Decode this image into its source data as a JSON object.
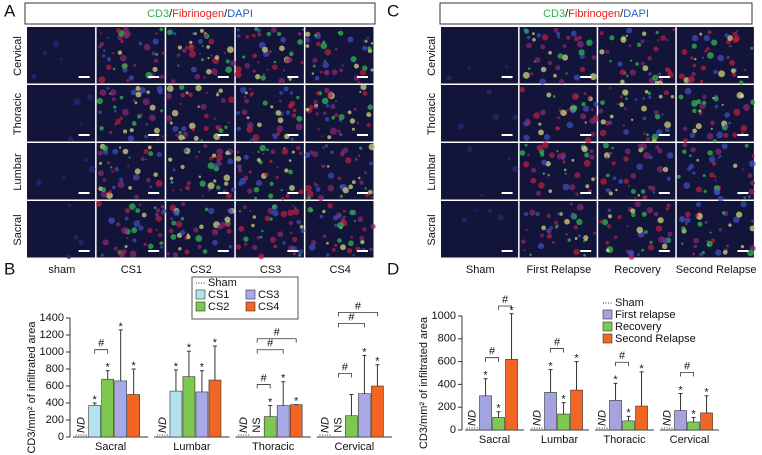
{
  "panel_a": {
    "letter": "A",
    "stain": [
      "CD3",
      "/",
      "Fibrinogen",
      "/",
      "DAPI"
    ],
    "rows": [
      "Cervical",
      "Thoracic",
      "Lumbar",
      "Sacral"
    ],
    "columns": [
      "sham",
      "CS1",
      "CS2",
      "CS3",
      "CS4"
    ]
  },
  "panel_c": {
    "letter": "C",
    "stain": [
      "CD3",
      "/",
      "Fibrinogen",
      "/",
      "DAPI"
    ],
    "rows": [
      "Cervical",
      "Thoracic",
      "Lumbar",
      "Sacral"
    ],
    "columns": [
      "Sham",
      "First Relapse",
      "Recovery",
      "Second Relapse"
    ]
  },
  "chart_data": [
    {
      "type": "bar",
      "letter": "B",
      "y_label": "CD3/mm² of infiltrated area",
      "categories": [
        "Sacral",
        "Lumbar",
        "Thoracic",
        "Cervical"
      ],
      "series": [
        {
          "name": "Sham",
          "color": "#ffffff",
          "values": [
            0,
            0,
            0,
            0
          ]
        },
        {
          "name": "CS1",
          "color": "#b3e3ea",
          "values": [
            370,
            540,
            0,
            0
          ],
          "errors": [
            30,
            250,
            0,
            0
          ]
        },
        {
          "name": "CS2",
          "color": "#7cc850",
          "values": [
            680,
            710,
            240,
            250
          ],
          "errors": [
            100,
            300,
            130,
            250
          ]
        },
        {
          "name": "CS3",
          "color": "#a9a9e6",
          "values": [
            660,
            530,
            370,
            510
          ],
          "errors": [
            600,
            250,
            280,
            450
          ]
        },
        {
          "name": "CS4",
          "color": "#f26522",
          "values": [
            500,
            670,
            380,
            600
          ],
          "errors": [
            300,
            400,
            0,
            250
          ]
        }
      ],
      "ylim": [
        0,
        1400
      ],
      "yticks": [
        0,
        200,
        400,
        600,
        800,
        1000,
        1200,
        1400
      ],
      "annotations": [
        {
          "text": "ND",
          "category": 0,
          "series": 0
        },
        {
          "text": "ND",
          "category": 1,
          "series": 0
        },
        {
          "text": "ND",
          "category": 2,
          "series": 0
        },
        {
          "text": "ND",
          "category": 3,
          "series": 0
        },
        {
          "text": "*",
          "category": 0,
          "series": 1
        },
        {
          "text": "*",
          "category": 1,
          "series": 1
        },
        {
          "text": "NS",
          "category": 2,
          "series": 1
        },
        {
          "text": "NS",
          "category": 3,
          "series": 1
        },
        {
          "text": "*",
          "category": 0,
          "series": 2
        },
        {
          "text": "*",
          "category": 1,
          "series": 2
        },
        {
          "text": "*",
          "category": 2,
          "series": 2
        },
        {
          "text": "*",
          "category": 0,
          "series": 3
        },
        {
          "text": "*",
          "category": 1,
          "series": 3
        },
        {
          "text": "*",
          "category": 2,
          "series": 3
        },
        {
          "text": "*",
          "category": 3,
          "series": 3
        },
        {
          "text": "*",
          "category": 0,
          "series": 4
        },
        {
          "text": "*",
          "category": 1,
          "series": 4
        },
        {
          "text": "*",
          "category": 2,
          "series": 4
        },
        {
          "text": "*",
          "category": 3,
          "series": 4
        }
      ],
      "brackets": [
        {
          "text": "#",
          "category": 0,
          "from": 1,
          "to": 2
        },
        {
          "text": "#",
          "category": 2,
          "from": 1,
          "to": 2
        },
        {
          "text": "#",
          "category": 2,
          "from": 1,
          "to": 3
        },
        {
          "text": "#",
          "category": 2,
          "from": 1,
          "to": 4
        },
        {
          "text": "#",
          "category": 3,
          "from": 1,
          "to": 2
        },
        {
          "text": "#",
          "category": 3,
          "from": 1,
          "to": 3
        },
        {
          "text": "#",
          "category": 3,
          "from": 1,
          "to": 4
        }
      ]
    },
    {
      "type": "bar",
      "letter": "D",
      "y_label": "CD3/mm² of infiltrated area",
      "categories": [
        "Sacral",
        "Lumbar",
        "Thoracic",
        "Cervical"
      ],
      "series": [
        {
          "name": "Sham",
          "color": "#ffffff",
          "values": [
            0,
            0,
            0,
            0
          ]
        },
        {
          "name": "First relapse",
          "color": "#a3a3e0",
          "values": [
            300,
            330,
            260,
            170
          ],
          "errors": [
            150,
            200,
            150,
            150
          ]
        },
        {
          "name": "Recovery",
          "color": "#7cc850",
          "values": [
            110,
            140,
            80,
            70
          ],
          "errors": [
            50,
            100,
            40,
            40
          ]
        },
        {
          "name": "Second Relapse",
          "color": "#f26522",
          "values": [
            620,
            350,
            210,
            150
          ],
          "errors": [
            400,
            250,
            300,
            150
          ]
        }
      ],
      "ylim": [
        0,
        1000
      ],
      "yticks": [
        0,
        200,
        400,
        600,
        800,
        1000
      ],
      "annotations": [
        {
          "text": "ND",
          "category": 0,
          "series": 0
        },
        {
          "text": "ND",
          "category": 1,
          "series": 0
        },
        {
          "text": "ND",
          "category": 2,
          "series": 0
        },
        {
          "text": "ND",
          "category": 3,
          "series": 0
        },
        {
          "text": "*",
          "category": 0,
          "series": 1
        },
        {
          "text": "*",
          "category": 1,
          "series": 1
        },
        {
          "text": "*",
          "category": 2,
          "series": 1
        },
        {
          "text": "*",
          "category": 3,
          "series": 1
        },
        {
          "text": "*",
          "category": 0,
          "series": 2
        },
        {
          "text": "*",
          "category": 1,
          "series": 2
        },
        {
          "text": "*",
          "category": 2,
          "series": 2
        },
        {
          "text": "*",
          "category": 3,
          "series": 2
        },
        {
          "text": "*",
          "category": 0,
          "series": 3
        },
        {
          "text": "*",
          "category": 1,
          "series": 3
        },
        {
          "text": "*",
          "category": 2,
          "series": 3
        },
        {
          "text": "*",
          "category": 3,
          "series": 3
        }
      ],
      "brackets": [
        {
          "text": "#",
          "category": 0,
          "from": 1,
          "to": 2
        },
        {
          "text": "#",
          "category": 0,
          "from": 2,
          "to": 3
        },
        {
          "text": "#",
          "category": 1,
          "from": 1,
          "to": 2
        },
        {
          "text": "#",
          "category": 2,
          "from": 1,
          "to": 2
        },
        {
          "text": "#",
          "category": 3,
          "from": 1,
          "to": 2
        }
      ]
    }
  ]
}
